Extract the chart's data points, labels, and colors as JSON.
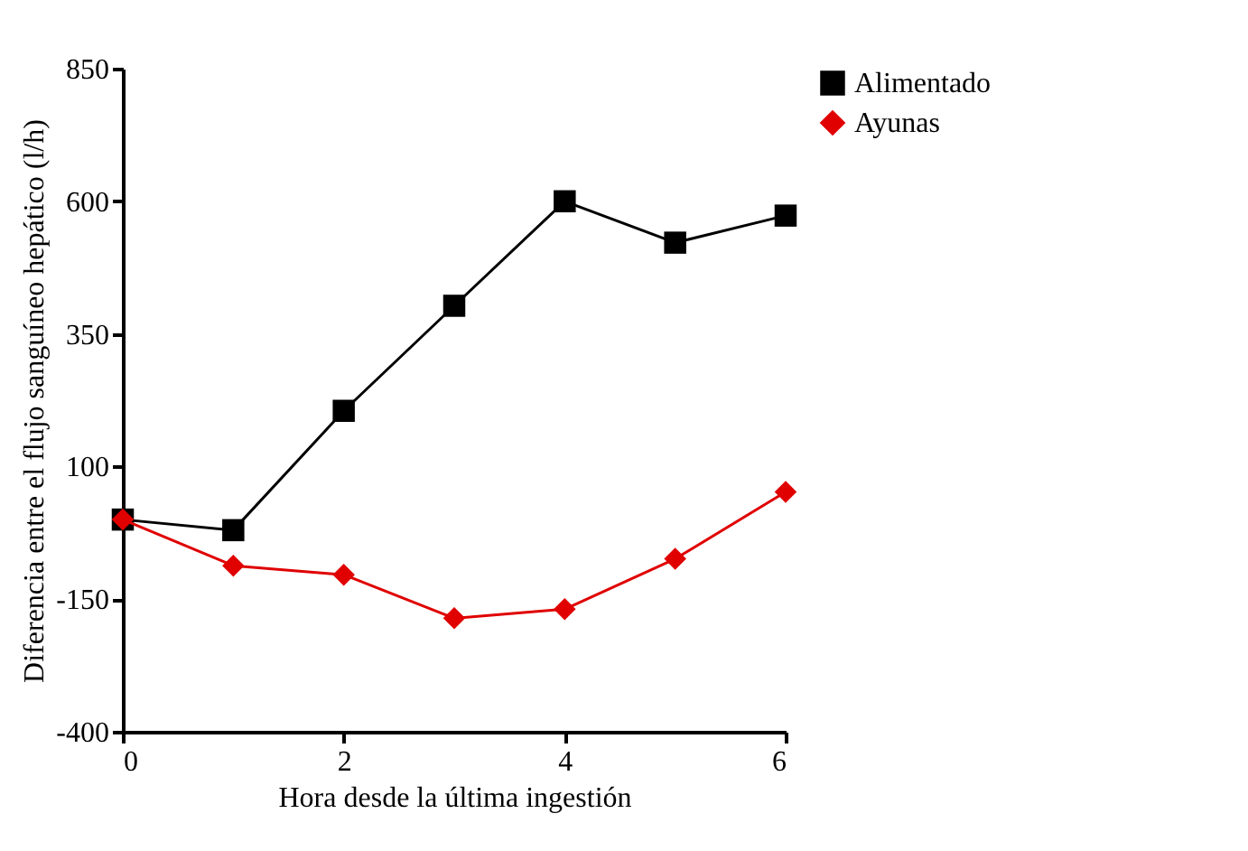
{
  "chart_data": {
    "type": "line",
    "xlabel": "Hora desde la última ingestión",
    "ylabel": "Diferencia entre el flujo sanguíneo hepático (l/h)",
    "x": [
      0,
      1,
      2,
      3,
      4,
      5,
      6
    ],
    "series": [
      {
        "name": "Alimentado",
        "color": "#000000",
        "marker": "square",
        "values": [
          0,
          -20,
          205,
          403,
          600,
          522,
          573
        ]
      },
      {
        "name": "Ayunas",
        "color": "#e00000",
        "marker": "diamond",
        "values": [
          0,
          -87,
          -104,
          -186,
          -169,
          -74,
          52
        ]
      }
    ],
    "xlim": [
      0,
      6
    ],
    "xticks": [
      0,
      2,
      4,
      6
    ],
    "ylim": [
      -400,
      850
    ],
    "yticks": [
      -400,
      -150,
      100,
      350,
      600,
      850
    ],
    "grid": false,
    "legend": "right",
    "line_style": "solid"
  }
}
